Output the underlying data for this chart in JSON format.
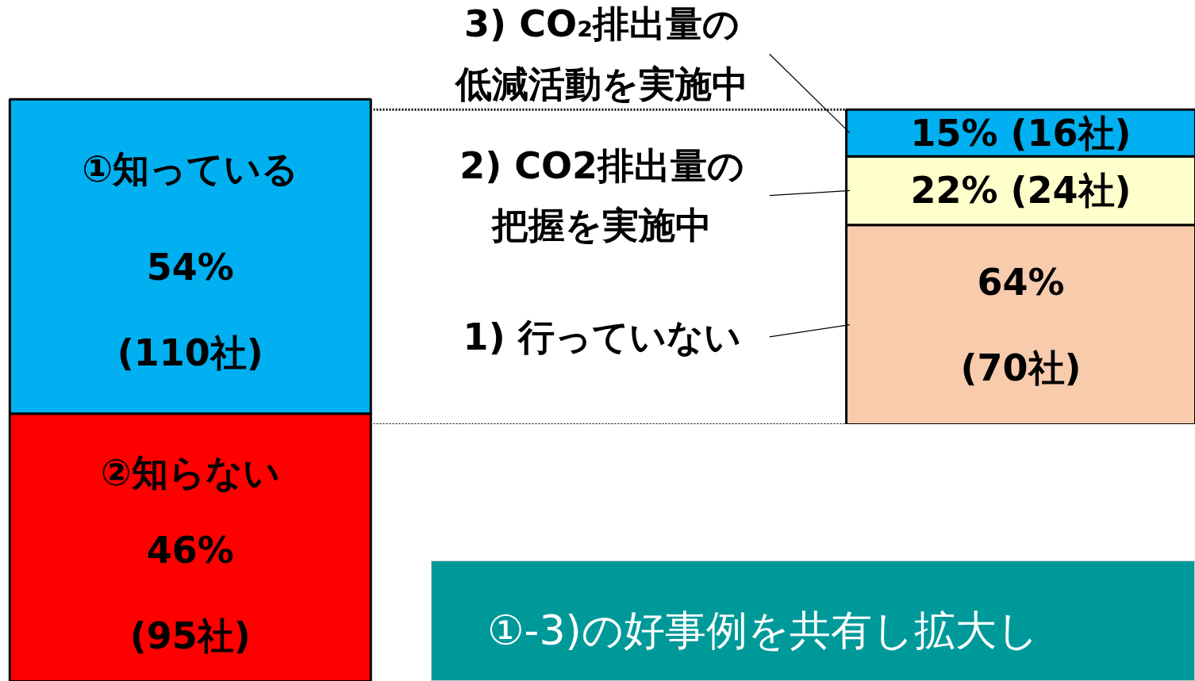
{
  "chart_data": [
    {
      "type": "bar",
      "stacked": true,
      "categories": [
        null
      ],
      "series": [
        {
          "name": "②知らない",
          "color": "#ff0000",
          "values": [
            46
          ],
          "value_labels": [
            "46%\n(95社)"
          ]
        },
        {
          "name": "①知っている",
          "color": "#00b0f0",
          "values": [
            54
          ],
          "value_labels": [
            "54%\n(110社)"
          ]
        }
      ]
    },
    {
      "type": "bar",
      "stacked": true,
      "categories": [
        null
      ],
      "legend": "left",
      "series": [
        {
          "name": "1) 行っていない",
          "color": "#f8cbad",
          "values": [
            64
          ],
          "value_labels": [
            "64%\n(70社)"
          ]
        },
        {
          "name": "2) CO2排出量の把握を実施中",
          "color": "#ffffcc",
          "values": [
            22
          ],
          "value_labels": [
            "22% (24社)"
          ]
        },
        {
          "name": "3) CO₂排出量の低減活動を実施中",
          "color": "#00b0f0",
          "values": [
            15
          ],
          "value_labels": [
            "15% (16社)"
          ]
        }
      ],
      "annotations": [
        "①-3)の好事例を共有し拡大し"
      ]
    }
  ]
}
